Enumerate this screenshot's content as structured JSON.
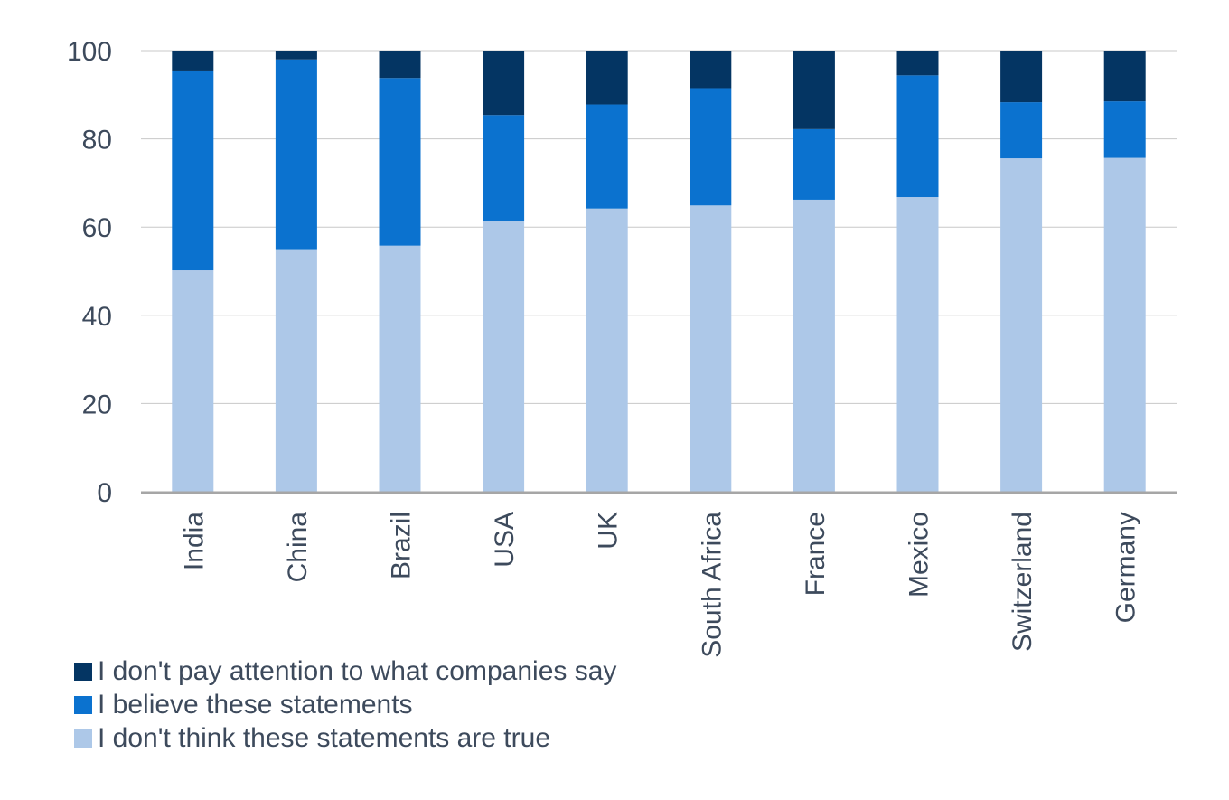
{
  "chart_data": {
    "type": "bar",
    "stacked": true,
    "categories": [
      "India",
      "China",
      "Brazil",
      "USA",
      "UK",
      "South Africa",
      "France",
      "Mexico",
      "Switzerland",
      "Germany"
    ],
    "series": [
      {
        "name": "I don't think these statements are true",
        "color": "#adc8e8",
        "values": [
          50.2,
          54.8,
          55.8,
          61.4,
          64.2,
          64.9,
          66.2,
          66.8,
          75.6,
          75.7
        ]
      },
      {
        "name": "I believe these statements",
        "color": "#0b72cf",
        "values": [
          45.3,
          43.2,
          38.0,
          24.0,
          23.6,
          26.6,
          16.0,
          27.6,
          12.7,
          12.8
        ]
      },
      {
        "name": "I don't pay attention to what companies say",
        "color": "#043563",
        "values": [
          4.5,
          2.0,
          6.2,
          14.6,
          12.2,
          8.5,
          17.8,
          5.6,
          11.7,
          11.5
        ]
      }
    ],
    "ylim": [
      0,
      100
    ],
    "yticks": [
      "0",
      "20",
      "40",
      "60",
      "80",
      "100"
    ],
    "grid": true,
    "legend_position": "bottom-left",
    "legend": [
      {
        "label": "I don't pay attention to what companies say",
        "color": "#043563"
      },
      {
        "label": "I believe these statements",
        "color": "#0b72cf"
      },
      {
        "label": "I don't think these statements are true",
        "color": "#adc8e8"
      }
    ]
  }
}
